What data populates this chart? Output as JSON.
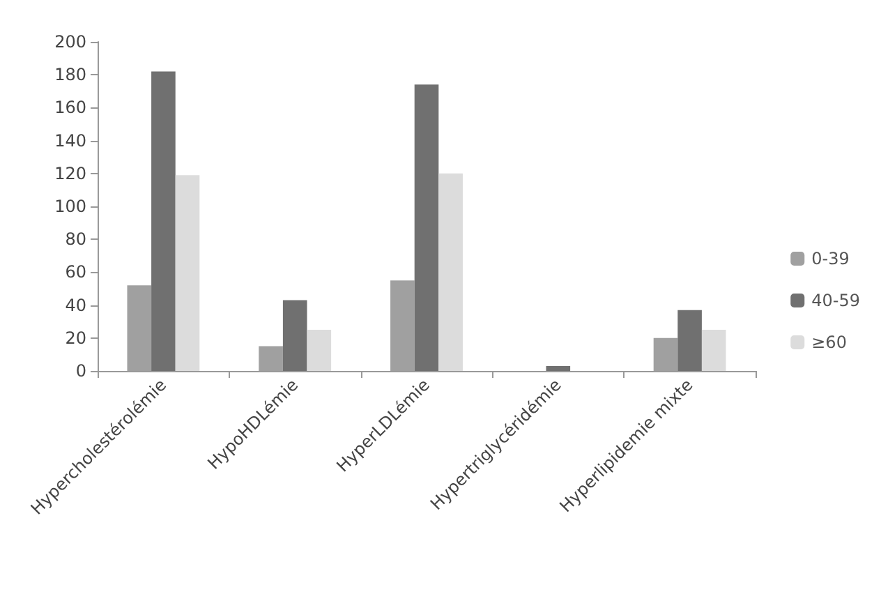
{
  "chart_data": {
    "type": "bar",
    "categories": [
      "Hypercholestérolémie",
      "HypoHDLémie",
      "HyperLDLémie",
      "Hypertriglycéridémie",
      "Hyperlipidemie mixte"
    ],
    "series": [
      {
        "name": "0-39",
        "color": "#a0a0a0",
        "values": [
          52,
          15,
          55,
          0,
          20
        ]
      },
      {
        "name": "40-59",
        "color": "#707070",
        "values": [
          182,
          43,
          174,
          3,
          37
        ]
      },
      {
        "name": "≥60",
        "color": "#dcdcdc",
        "values": [
          119,
          25,
          120,
          0,
          25
        ]
      }
    ],
    "ylim": [
      0,
      200
    ],
    "yticks": [
      0,
      20,
      40,
      60,
      80,
      100,
      120,
      140,
      160,
      180,
      200
    ],
    "grid": false,
    "legend": "right"
  }
}
